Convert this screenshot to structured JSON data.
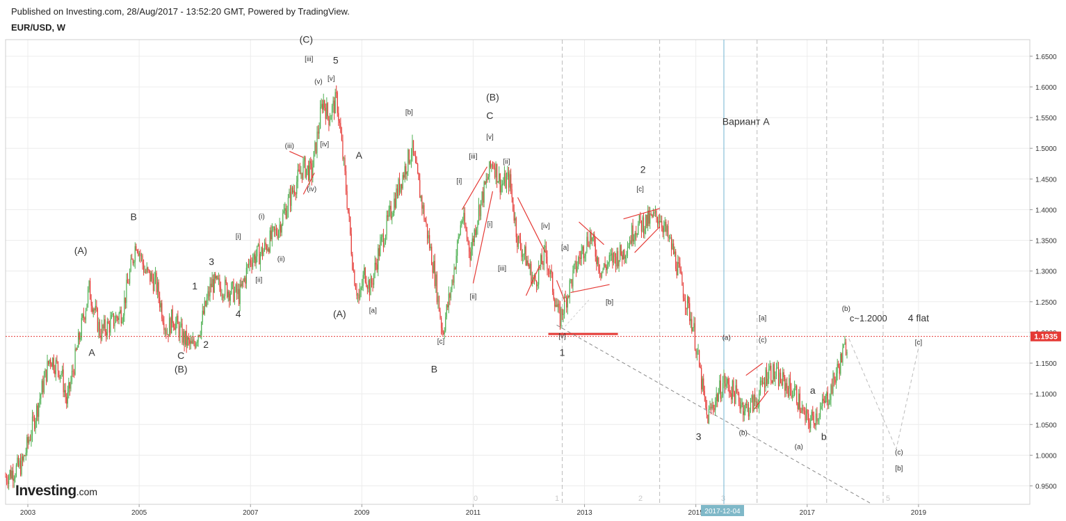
{
  "header": {
    "published": "Published on Investing.com, 28/Aug/2017 - 13:52:20 GMT, Powered by TradingView.",
    "symbol": "EUR/USD, W"
  },
  "logo": {
    "brand": "Investing",
    "tld": ".com"
  },
  "colors": {
    "bull": "#4caf50",
    "bear": "#e53935",
    "price_line": "#e53935",
    "price_tag": "#e53935",
    "date_tag": "#7fb8c8",
    "cursor_line": "#6fb3d2",
    "grid": "#ececec",
    "dashed": "#bbbbbb"
  },
  "chart_data": {
    "type": "candlestick",
    "title": "EUR/USD, W",
    "xlim": [
      2002.6,
      2021.0
    ],
    "ylim": [
      0.92,
      1.677
    ],
    "y_ticks": [
      "1.6500",
      "1.6000",
      "1.5500",
      "1.5000",
      "1.4500",
      "1.4000",
      "1.3500",
      "1.3000",
      "1.2500",
      "1.2000",
      "1.1500",
      "1.1000",
      "1.0500",
      "1.0000",
      "0.9500"
    ],
    "x_ticks": [
      "2003",
      "2005",
      "2007",
      "2009",
      "2011",
      "2013",
      "2015",
      "2017",
      "2019"
    ],
    "current_price": "1.1935",
    "current_date_tag": "2017-12-04",
    "series_path": [
      [
        2002.6,
        0.965
      ],
      [
        2002.9,
        0.985
      ],
      [
        2003.15,
        1.07
      ],
      [
        2003.4,
        1.16
      ],
      [
        2003.6,
        1.135
      ],
      [
        2003.7,
        1.085
      ],
      [
        2003.9,
        1.18
      ],
      [
        2004.1,
        1.27
      ],
      [
        2004.3,
        1.2
      ],
      [
        2004.5,
        1.215
      ],
      [
        2004.7,
        1.235
      ],
      [
        2004.95,
        1.35
      ],
      [
        2005.1,
        1.3
      ],
      [
        2005.3,
        1.28
      ],
      [
        2005.5,
        1.2
      ],
      [
        2005.6,
        1.225
      ],
      [
        2005.8,
        1.19
      ],
      [
        2005.95,
        1.175
      ],
      [
        2006.1,
        1.21
      ],
      [
        2006.3,
        1.28
      ],
      [
        2006.6,
        1.27
      ],
      [
        2006.8,
        1.26
      ],
      [
        2007.0,
        1.32
      ],
      [
        2007.2,
        1.33
      ],
      [
        2007.5,
        1.37
      ],
      [
        2007.8,
        1.44
      ],
      [
        2007.95,
        1.47
      ],
      [
        2008.1,
        1.46
      ],
      [
        2008.3,
        1.58
      ],
      [
        2008.4,
        1.55
      ],
      [
        2008.55,
        1.58
      ],
      [
        2008.7,
        1.45
      ],
      [
        2008.85,
        1.3
      ],
      [
        2008.95,
        1.25
      ],
      [
        2009.05,
        1.3
      ],
      [
        2009.15,
        1.27
      ],
      [
        2009.3,
        1.33
      ],
      [
        2009.6,
        1.42
      ],
      [
        2009.9,
        1.5
      ],
      [
        2010.1,
        1.4
      ],
      [
        2010.3,
        1.3
      ],
      [
        2010.45,
        1.2
      ],
      [
        2010.6,
        1.27
      ],
      [
        2010.8,
        1.39
      ],
      [
        2010.95,
        1.33
      ],
      [
        2011.1,
        1.4
      ],
      [
        2011.35,
        1.48
      ],
      [
        2011.5,
        1.44
      ],
      [
        2011.65,
        1.45
      ],
      [
        2011.8,
        1.35
      ],
      [
        2011.95,
        1.32
      ],
      [
        2012.1,
        1.28
      ],
      [
        2012.3,
        1.33
      ],
      [
        2012.55,
        1.22
      ],
      [
        2012.75,
        1.28
      ],
      [
        2012.9,
        1.32
      ],
      [
        2013.1,
        1.36
      ],
      [
        2013.3,
        1.3
      ],
      [
        2013.5,
        1.32
      ],
      [
        2013.7,
        1.33
      ],
      [
        2013.9,
        1.37
      ],
      [
        2014.1,
        1.38
      ],
      [
        2014.35,
        1.39
      ],
      [
        2014.6,
        1.33
      ],
      [
        2014.8,
        1.26
      ],
      [
        2014.95,
        1.21
      ],
      [
        2015.1,
        1.12
      ],
      [
        2015.2,
        1.06
      ],
      [
        2015.35,
        1.09
      ],
      [
        2015.5,
        1.12
      ],
      [
        2015.7,
        1.1
      ],
      [
        2015.9,
        1.075
      ],
      [
        2016.1,
        1.09
      ],
      [
        2016.3,
        1.14
      ],
      [
        2016.55,
        1.12
      ],
      [
        2016.8,
        1.1
      ],
      [
        2016.95,
        1.06
      ],
      [
        2017.05,
        1.055
      ],
      [
        2017.25,
        1.075
      ],
      [
        2017.4,
        1.1
      ],
      [
        2017.55,
        1.14
      ],
      [
        2017.7,
        1.18
      ],
      [
        2017.75,
        1.19
      ]
    ],
    "annotations": [
      {
        "t": "(A)",
        "x": 2003.95,
        "y": 1.328,
        "s": 14
      },
      {
        "t": "B",
        "x": 2004.9,
        "y": 1.383,
        "s": 14
      },
      {
        "t": "A",
        "x": 2004.15,
        "y": 1.162,
        "s": 14
      },
      {
        "t": "C",
        "x": 2005.75,
        "y": 1.157,
        "s": 14
      },
      {
        "t": "(B)",
        "x": 2005.75,
        "y": 1.135,
        "s": 14
      },
      {
        "t": "2",
        "x": 2006.2,
        "y": 1.175,
        "s": 14
      },
      {
        "t": "1",
        "x": 2006.0,
        "y": 1.27,
        "s": 14
      },
      {
        "t": "3",
        "x": 2006.3,
        "y": 1.31,
        "s": 14
      },
      {
        "t": "4",
        "x": 2006.78,
        "y": 1.225,
        "s": 14
      },
      {
        "t": "[i]",
        "x": 2006.78,
        "y": 1.353,
        "s": 10
      },
      {
        "t": "[ii]",
        "x": 2007.15,
        "y": 1.282,
        "s": 10
      },
      {
        "t": "(i)",
        "x": 2007.2,
        "y": 1.385,
        "s": 10
      },
      {
        "t": "(ii)",
        "x": 2007.55,
        "y": 1.316,
        "s": 10
      },
      {
        "t": "(iii)",
        "x": 2007.7,
        "y": 1.5,
        "s": 10
      },
      {
        "t": "(iv)",
        "x": 2008.1,
        "y": 1.43,
        "s": 10
      },
      {
        "t": "(v)",
        "x": 2008.22,
        "y": 1.605,
        "s": 10
      },
      {
        "t": "[iv]",
        "x": 2008.33,
        "y": 1.503,
        "s": 10
      },
      {
        "t": "[iii]",
        "x": 2008.05,
        "y": 1.642,
        "s": 10
      },
      {
        "t": "[v]",
        "x": 2008.45,
        "y": 1.61,
        "s": 10
      },
      {
        "t": "5",
        "x": 2008.53,
        "y": 1.638,
        "s": 14
      },
      {
        "t": "(C)",
        "x": 2008.0,
        "y": 1.672,
        "s": 14
      },
      {
        "t": "A",
        "x": 2008.95,
        "y": 1.483,
        "s": 14
      },
      {
        "t": "(A)",
        "x": 2008.6,
        "y": 1.225,
        "s": 14
      },
      {
        "t": "[a]",
        "x": 2009.2,
        "y": 1.232,
        "s": 10
      },
      {
        "t": "[b]",
        "x": 2009.85,
        "y": 1.555,
        "s": 10
      },
      {
        "t": "[c]",
        "x": 2010.42,
        "y": 1.182,
        "s": 10
      },
      {
        "t": "B",
        "x": 2010.3,
        "y": 1.135,
        "s": 14
      },
      {
        "t": "[i]",
        "x": 2010.75,
        "y": 1.443,
        "s": 10
      },
      {
        "t": "[ii]",
        "x": 2011.0,
        "y": 1.255,
        "s": 10
      },
      {
        "t": "[iii]",
        "x": 2011.0,
        "y": 1.483,
        "s": 10
      },
      {
        "t": "[i]",
        "x": 2011.3,
        "y": 1.373,
        "s": 10
      },
      {
        "t": "[ii]",
        "x": 2011.6,
        "y": 1.475,
        "s": 10
      },
      {
        "t": "[iii]",
        "x": 2011.52,
        "y": 1.301,
        "s": 10
      },
      {
        "t": "[v]",
        "x": 2011.3,
        "y": 1.515,
        "s": 10
      },
      {
        "t": "C",
        "x": 2011.3,
        "y": 1.548,
        "s": 14
      },
      {
        "t": "(B)",
        "x": 2011.35,
        "y": 1.578,
        "s": 14
      },
      {
        "t": "[iv]",
        "x": 2012.3,
        "y": 1.37,
        "s": 10
      },
      {
        "t": "[a]",
        "x": 2012.65,
        "y": 1.335,
        "s": 10
      },
      {
        "t": "[v]",
        "x": 2012.6,
        "y": 1.19,
        "s": 10
      },
      {
        "t": "1",
        "x": 2012.6,
        "y": 1.162,
        "s": 14
      },
      {
        "t": "[b]",
        "x": 2013.45,
        "y": 1.246,
        "s": 10
      },
      {
        "t": "[c]",
        "x": 2014.0,
        "y": 1.43,
        "s": 10
      },
      {
        "t": "2",
        "x": 2014.05,
        "y": 1.46,
        "s": 14
      },
      {
        "t": "Вариант А",
        "x": 2015.9,
        "y": 1.538,
        "s": 14
      },
      {
        "t": "3",
        "x": 2015.05,
        "y": 1.025,
        "s": 14
      },
      {
        "t": "(a)",
        "x": 2015.55,
        "y": 1.188,
        "s": 10
      },
      {
        "t": "(b)",
        "x": 2015.85,
        "y": 1.033,
        "s": 10
      },
      {
        "t": "[a]",
        "x": 2016.2,
        "y": 1.22,
        "s": 10
      },
      {
        "t": "(c)",
        "x": 2016.2,
        "y": 1.184,
        "s": 10
      },
      {
        "t": "(a)",
        "x": 2016.85,
        "y": 1.01,
        "s": 10
      },
      {
        "t": "a",
        "x": 2017.1,
        "y": 1.1,
        "s": 14
      },
      {
        "t": "b",
        "x": 2017.3,
        "y": 1.025,
        "s": 14
      },
      {
        "t": "(b)",
        "x": 2017.7,
        "y": 1.235,
        "s": 10
      },
      {
        "t": "c~1.2000",
        "x": 2018.1,
        "y": 1.218,
        "s": 13
      },
      {
        "t": "4 flat",
        "x": 2019.0,
        "y": 1.218,
        "s": 14
      },
      {
        "t": "[c]",
        "x": 2019.0,
        "y": 1.18,
        "s": 10
      },
      {
        "t": "(c)",
        "x": 2018.65,
        "y": 1.001,
        "s": 10
      },
      {
        "t": "[b]",
        "x": 2018.65,
        "y": 0.975,
        "s": 10
      }
    ],
    "fib_time_labels": [
      {
        "t": "0",
        "x": 2012.6
      },
      {
        "t": "1",
        "x": 2014.35
      },
      {
        "t": "2",
        "x": 2016.1
      },
      {
        "t": "5",
        "x": 2021.5
      }
    ]
  }
}
